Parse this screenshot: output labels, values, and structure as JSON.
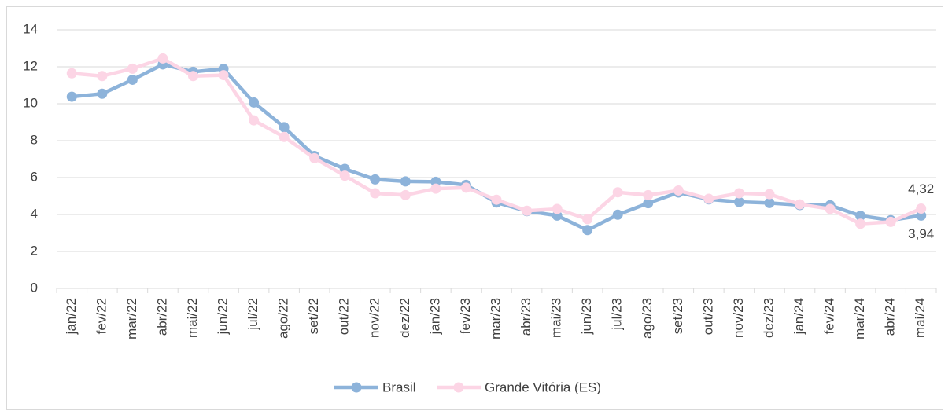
{
  "chart_data": {
    "type": "line",
    "categories": [
      "jan/22",
      "fev/22",
      "mar/22",
      "abr/22",
      "mai/22",
      "jun/22",
      "jul/22",
      "ago/22",
      "set/22",
      "out/22",
      "nov/22",
      "dez/22",
      "jan/23",
      "fev/23",
      "mar/23",
      "abr/23",
      "mai/23",
      "jun/23",
      "jul/23",
      "ago/23",
      "set/23",
      "out/23",
      "nov/23",
      "dez/23",
      "jan/24",
      "fev/24",
      "mar/24",
      "abr/24",
      "mai/24"
    ],
    "series": [
      {
        "name": "Brasil",
        "color": "#8db3da",
        "values": [
          10.38,
          10.54,
          11.3,
          12.13,
          11.73,
          11.89,
          10.07,
          8.73,
          7.17,
          6.47,
          5.9,
          5.79,
          5.77,
          5.6,
          4.65,
          4.18,
          3.94,
          3.16,
          3.99,
          4.61,
          5.19,
          4.82,
          4.68,
          4.62,
          4.51,
          4.5,
          3.93,
          3.69,
          3.94
        ],
        "value_labels": [
          null,
          null,
          null,
          null,
          null,
          null,
          null,
          null,
          null,
          null,
          null,
          null,
          null,
          null,
          null,
          null,
          null,
          null,
          null,
          null,
          null,
          null,
          null,
          null,
          null,
          null,
          null,
          null,
          "3,94"
        ]
      },
      {
        "name": "Grande Vitória (ES)",
        "color": "#fcd5e5",
        "values": [
          11.65,
          11.5,
          11.9,
          12.45,
          11.5,
          11.55,
          9.1,
          8.2,
          7.05,
          6.1,
          5.15,
          5.05,
          5.4,
          5.45,
          4.8,
          4.2,
          4.3,
          3.75,
          5.2,
          5.05,
          5.3,
          4.85,
          5.15,
          5.1,
          4.55,
          4.3,
          3.5,
          3.6,
          4.32
        ],
        "value_labels": [
          null,
          null,
          null,
          null,
          null,
          null,
          null,
          null,
          null,
          null,
          null,
          null,
          null,
          null,
          null,
          null,
          null,
          null,
          null,
          null,
          null,
          null,
          null,
          null,
          null,
          null,
          null,
          null,
          "4,32"
        ]
      }
    ],
    "ylim": [
      0,
      14
    ],
    "yticks": [
      0,
      2,
      4,
      6,
      8,
      10,
      12,
      14
    ],
    "grid": true,
    "legend": "bottom"
  }
}
